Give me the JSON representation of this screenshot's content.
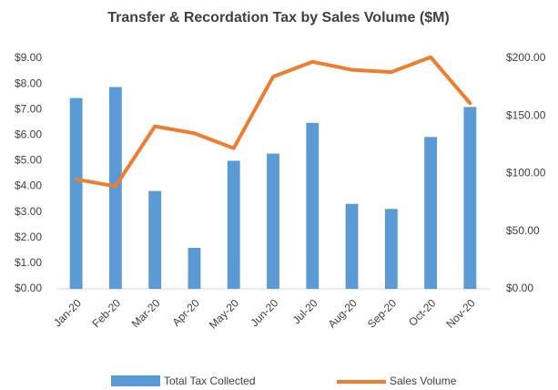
{
  "chart_data": {
    "type": "bar_line",
    "title": "Transfer & Recordation Tax by Sales Volume ($M)",
    "categories": [
      "Jan-20",
      "Feb-20",
      "Mar-20",
      "Apr-20",
      "May-20",
      "Jun-20",
      "Jul-20",
      "Aug-20",
      "Sep-20",
      "Oct-20",
      "Nov-20"
    ],
    "series": [
      {
        "name": "Total Tax Collected",
        "type": "bar",
        "color": "#5b9bd5",
        "values": [
          7.45,
          7.88,
          3.82,
          1.6,
          5.0,
          5.28,
          6.48,
          3.32,
          3.12,
          5.93,
          7.1
        ]
      },
      {
        "name": "Sales Volume",
        "type": "line",
        "color": "#ed7d31",
        "axis": "y2",
        "values": [
          95,
          89,
          141,
          135,
          122,
          184,
          197,
          190,
          188,
          201,
          161
        ]
      }
    ],
    "ylim": [
      0,
      9
    ],
    "yticks": [
      {
        "value": 0,
        "label": "$0.00"
      },
      {
        "value": 1,
        "label": "$1.00"
      },
      {
        "value": 2,
        "label": "$2.00"
      },
      {
        "value": 3,
        "label": "$3.00"
      },
      {
        "value": 4,
        "label": "$4.00"
      },
      {
        "value": 5,
        "label": "$5.00"
      },
      {
        "value": 6,
        "label": "$6.00"
      },
      {
        "value": 7,
        "label": "$7.00"
      },
      {
        "value": 8,
        "label": "$8.00"
      },
      {
        "value": 9,
        "label": "$9.00"
      }
    ],
    "y2lim": [
      0,
      200
    ],
    "y2ticks": [
      {
        "value": 0,
        "label": "$0.00"
      },
      {
        "value": 50,
        "label": "$50.00"
      },
      {
        "value": 100,
        "label": "$100.00"
      },
      {
        "value": 150,
        "label": "$150.00"
      },
      {
        "value": 200,
        "label": "$200.00"
      }
    ],
    "legend": "bottom"
  }
}
